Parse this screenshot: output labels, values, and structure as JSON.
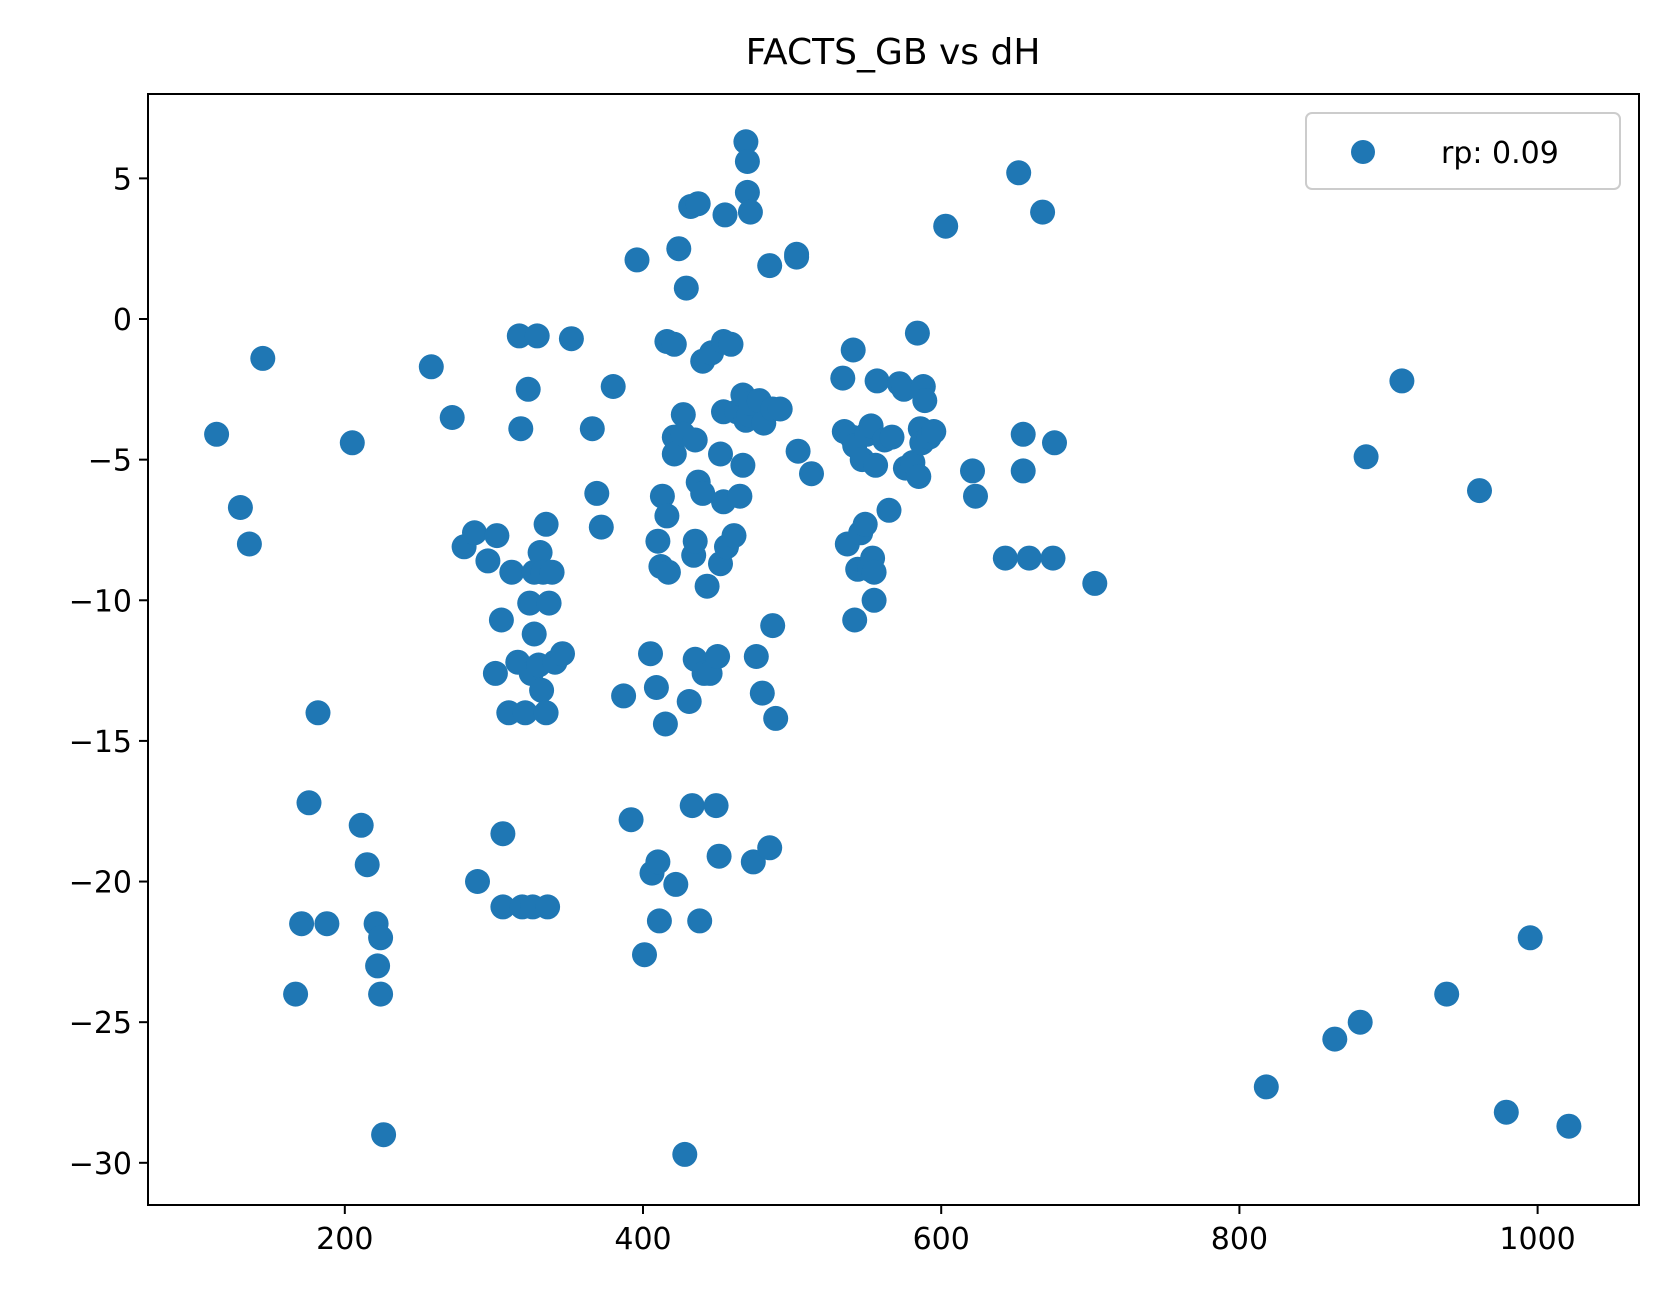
{
  "chart_data": {
    "type": "scatter",
    "title": "FACTS_GB vs dH",
    "xlabel": "",
    "ylabel": "",
    "xlim": [
      68,
      1068
    ],
    "ylim": [
      -31.5,
      8.0
    ],
    "xticks": [
      200,
      400,
      600,
      800,
      1000
    ],
    "yticks": [
      5,
      0,
      -5,
      -10,
      -15,
      -20,
      -25,
      -30
    ],
    "xtick_labels": [
      "200",
      "400",
      "600",
      "800",
      "1000"
    ],
    "ytick_labels": [
      "5",
      "0",
      "−5",
      "−10",
      "−15",
      "−20",
      "−25",
      "−30"
    ],
    "grid": false,
    "legend_position": "top-right",
    "colors": {
      "series": "#1f77b4",
      "axes": "#000000",
      "legend_border": "#cccccc"
    },
    "series": [
      {
        "name": "rp: 0.09",
        "points": [
          [
            114,
            -4.1
          ],
          [
            130,
            -6.7
          ],
          [
            136,
            -8.0
          ],
          [
            145,
            -1.4
          ],
          [
            167,
            -24.0
          ],
          [
            171,
            -21.5
          ],
          [
            176,
            -17.2
          ],
          [
            182,
            -14.0
          ],
          [
            188,
            -21.5
          ],
          [
            205,
            -4.4
          ],
          [
            211,
            -18.0
          ],
          [
            215,
            -19.4
          ],
          [
            221,
            -21.5
          ],
          [
            222,
            -23.0
          ],
          [
            224,
            -22.0
          ],
          [
            224,
            -24.0
          ],
          [
            226,
            -29.0
          ],
          [
            258,
            -1.7
          ],
          [
            272,
            -3.5
          ],
          [
            280,
            -8.1
          ],
          [
            287,
            -7.6
          ],
          [
            289,
            -20.0
          ],
          [
            296,
            -8.6
          ],
          [
            301,
            -12.6
          ],
          [
            302,
            -7.7
          ],
          [
            305,
            -10.7
          ],
          [
            306,
            -18.3
          ],
          [
            306,
            -20.9
          ],
          [
            310,
            -14.0
          ],
          [
            312,
            -9.0
          ],
          [
            316,
            -12.2
          ],
          [
            317,
            -0.6
          ],
          [
            318,
            -3.9
          ],
          [
            319,
            -20.9
          ],
          [
            321,
            -14.0
          ],
          [
            323,
            -2.5
          ],
          [
            324,
            -10.1
          ],
          [
            325,
            -12.6
          ],
          [
            326,
            -20.9
          ],
          [
            327,
            -9.0
          ],
          [
            327,
            -11.2
          ],
          [
            329,
            -0.6
          ],
          [
            330,
            -12.3
          ],
          [
            331,
            -8.3
          ],
          [
            332,
            -13.2
          ],
          [
            333,
            -9.0
          ],
          [
            335,
            -7.3
          ],
          [
            335,
            -14.0
          ],
          [
            336,
            -20.9
          ],
          [
            337,
            -10.1
          ],
          [
            339,
            -9.0
          ],
          [
            341,
            -12.2
          ],
          [
            346,
            -11.9
          ],
          [
            352,
            -0.7
          ],
          [
            366,
            -3.9
          ],
          [
            369,
            -6.2
          ],
          [
            372,
            -7.4
          ],
          [
            380,
            -2.4
          ],
          [
            387,
            -13.4
          ],
          [
            392,
            -17.8
          ],
          [
            396,
            2.1
          ],
          [
            401,
            -22.6
          ],
          [
            405,
            -11.9
          ],
          [
            406,
            -19.7
          ],
          [
            409,
            -13.1
          ],
          [
            410,
            -7.9
          ],
          [
            410,
            -19.3
          ],
          [
            411,
            -21.4
          ],
          [
            412,
            -8.8
          ],
          [
            413,
            -6.3
          ],
          [
            415,
            -14.4
          ],
          [
            416,
            -0.8
          ],
          [
            416,
            -7.0
          ],
          [
            417,
            -9.0
          ],
          [
            421,
            -0.9
          ],
          [
            421,
            -4.2
          ],
          [
            421,
            -4.8
          ],
          [
            422,
            -20.1
          ],
          [
            424,
            2.5
          ],
          [
            427,
            -3.4
          ],
          [
            427,
            -4.1
          ],
          [
            428,
            -29.7
          ],
          [
            429,
            1.1
          ],
          [
            431,
            -13.6
          ],
          [
            432,
            4.0
          ],
          [
            433,
            -17.3
          ],
          [
            434,
            -8.4
          ],
          [
            435,
            -4.3
          ],
          [
            435,
            -7.9
          ],
          [
            435,
            -12.1
          ],
          [
            437,
            4.1
          ],
          [
            437,
            -5.8
          ],
          [
            438,
            -21.4
          ],
          [
            440,
            -1.5
          ],
          [
            440,
            -6.2
          ],
          [
            441,
            -12.6
          ],
          [
            443,
            -9.5
          ],
          [
            445,
            -12.6
          ],
          [
            446,
            -1.2
          ],
          [
            449,
            -17.3
          ],
          [
            450,
            -12.0
          ],
          [
            451,
            -19.1
          ],
          [
            452,
            -4.8
          ],
          [
            452,
            -8.7
          ],
          [
            454,
            -3.3
          ],
          [
            454,
            -0.8
          ],
          [
            454,
            -6.5
          ],
          [
            455,
            3.7
          ],
          [
            456,
            -8.1
          ],
          [
            459,
            -0.9
          ],
          [
            461,
            -7.7
          ],
          [
            463,
            -3.3
          ],
          [
            465,
            -6.3
          ],
          [
            467,
            -2.7
          ],
          [
            467,
            -5.2
          ],
          [
            469,
            6.3
          ],
          [
            469,
            -3.6
          ],
          [
            470,
            5.6
          ],
          [
            470,
            4.5
          ],
          [
            471,
            -3.4
          ],
          [
            472,
            3.8
          ],
          [
            472,
            -3.0
          ],
          [
            474,
            -19.3
          ],
          [
            476,
            -12.0
          ],
          [
            478,
            -2.9
          ],
          [
            480,
            -13.3
          ],
          [
            481,
            -3.7
          ],
          [
            485,
            1.9
          ],
          [
            485,
            -18.8
          ],
          [
            487,
            -3.2
          ],
          [
            487,
            -10.9
          ],
          [
            489,
            -14.2
          ],
          [
            492,
            -3.2
          ],
          [
            503,
            2.3
          ],
          [
            503,
            2.2
          ],
          [
            504,
            -4.7
          ],
          [
            513,
            -5.5
          ],
          [
            534,
            -2.1
          ],
          [
            535,
            -4.0
          ],
          [
            537,
            -8.0
          ],
          [
            540,
            -4.2
          ],
          [
            541,
            -1.1
          ],
          [
            542,
            -10.7
          ],
          [
            542,
            -4.5
          ],
          [
            544,
            -8.9
          ],
          [
            546,
            -7.6
          ],
          [
            547,
            -5.0
          ],
          [
            549,
            -7.3
          ],
          [
            550,
            -4.1
          ],
          [
            552,
            -8.9
          ],
          [
            553,
            -3.8
          ],
          [
            554,
            -8.5
          ],
          [
            555,
            -10.0
          ],
          [
            555,
            -9.0
          ],
          [
            556,
            -5.2
          ],
          [
            557,
            -2.2
          ],
          [
            562,
            -4.3
          ],
          [
            565,
            -6.8
          ],
          [
            567,
            -4.2
          ],
          [
            572,
            -2.3
          ],
          [
            575,
            -2.5
          ],
          [
            576,
            -5.3
          ],
          [
            581,
            -5.1
          ],
          [
            584,
            -0.5
          ],
          [
            585,
            -5.6
          ],
          [
            586,
            -3.9
          ],
          [
            587,
            -4.4
          ],
          [
            588,
            -2.4
          ],
          [
            589,
            -2.9
          ],
          [
            592,
            -4.2
          ],
          [
            595,
            -4.0
          ],
          [
            603,
            3.3
          ],
          [
            621,
            -5.4
          ],
          [
            623,
            -6.3
          ],
          [
            643,
            -8.5
          ],
          [
            652,
            5.2
          ],
          [
            655,
            -4.1
          ],
          [
            655,
            -5.4
          ],
          [
            659,
            -8.5
          ],
          [
            668,
            3.8
          ],
          [
            675,
            -8.5
          ],
          [
            676,
            -4.4
          ],
          [
            703,
            -9.4
          ],
          [
            818,
            -27.3
          ],
          [
            864,
            -25.6
          ],
          [
            881,
            -25.0
          ],
          [
            885,
            -4.9
          ],
          [
            909,
            -2.2
          ],
          [
            939,
            -24.0
          ],
          [
            961,
            -6.1
          ],
          [
            979,
            -28.2
          ],
          [
            995,
            -22.0
          ],
          [
            1021,
            -28.7
          ]
        ]
      }
    ]
  }
}
